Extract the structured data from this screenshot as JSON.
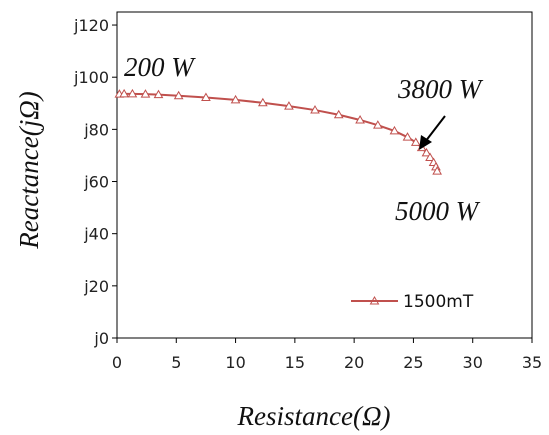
{
  "chart_data": {
    "type": "line",
    "title": "",
    "xlabel": "Resistance(Ω)",
    "ylabel": "Reactance(jΩ)",
    "xlim": [
      0,
      35
    ],
    "ylim": [
      0,
      125
    ],
    "x_ticks": [
      "0",
      "5",
      "10",
      "15",
      "20",
      "25",
      "30",
      "35"
    ],
    "y_ticks": [
      "j0",
      "j20",
      "j40",
      "j60",
      "j80",
      "j100",
      "j120"
    ],
    "x_tick_values": [
      0,
      5,
      10,
      15,
      20,
      25,
      30,
      35
    ],
    "y_tick_values": [
      0,
      20,
      40,
      60,
      80,
      100,
      120
    ],
    "grid": false,
    "legend_position": "bottom-right",
    "series": [
      {
        "name": "1500mT",
        "color": "#c0504d",
        "marker": "triangle",
        "x": [
          0.2,
          0.6,
          1.3,
          2.4,
          3.5,
          5.2,
          7.5,
          10.0,
          12.3,
          14.5,
          16.7,
          18.7,
          20.5,
          22.0,
          23.4,
          24.5,
          25.2,
          25.7,
          26.1,
          26.4,
          26.7,
          26.9,
          27.0
        ],
        "y": [
          93.5,
          93.6,
          93.6,
          93.5,
          93.3,
          92.9,
          92.2,
          91.3,
          90.2,
          88.9,
          87.4,
          85.6,
          83.6,
          81.6,
          79.4,
          77.0,
          75.0,
          73.0,
          71.0,
          69.2,
          67.3,
          65.6,
          64.0
        ]
      }
    ],
    "annotations": [
      {
        "text": "200 W"
      },
      {
        "text": "3800 W"
      },
      {
        "text": "5000 W"
      }
    ]
  }
}
